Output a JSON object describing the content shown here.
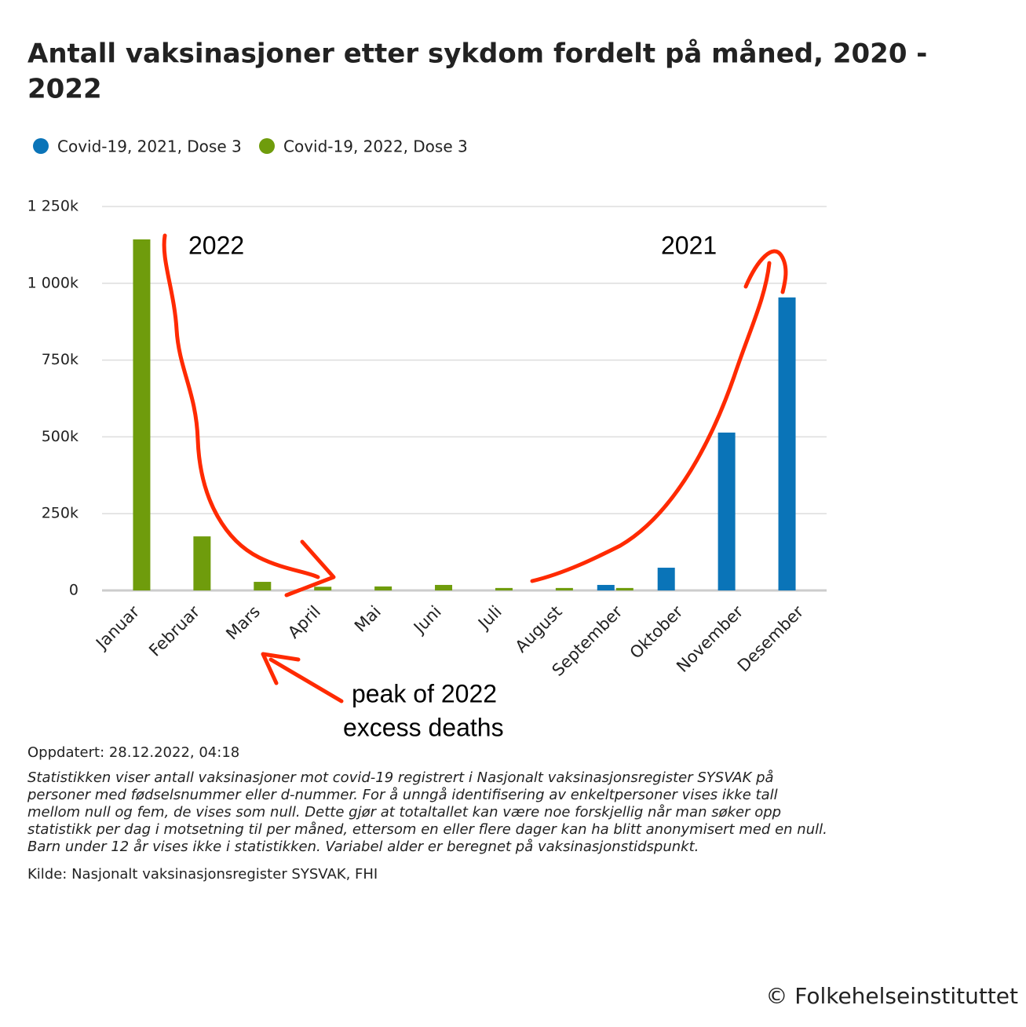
{
  "chart_data": {
    "type": "bar",
    "title": [
      "Antall vaksinasjoner etter sykdom fordelt på måned, 2020 -",
      "2022"
    ],
    "categories": [
      "Januar",
      "Februar",
      "Mars",
      "April",
      "Mai",
      "Juni",
      "Juli",
      "August",
      "September",
      "Oktober",
      "November",
      "Desember"
    ],
    "series": [
      {
        "name": "Covid-19, 2021, Dose 3",
        "color": "#0a74b8",
        "values": [
          null,
          null,
          null,
          null,
          null,
          null,
          null,
          null,
          18000,
          74000,
          514000,
          954000
        ]
      },
      {
        "name": "Covid-19, 2022, Dose 3",
        "color": "#6f9c0c",
        "values": [
          1143000,
          176000,
          28000,
          12000,
          13000,
          18000,
          8000,
          8000,
          8000,
          null,
          null,
          null
        ]
      }
    ],
    "ylim": [
      0,
      1250000
    ],
    "yticks": [
      0,
      {
        "value": 250000,
        "label": "250k"
      },
      {
        "value": 500000,
        "label": "500k"
      },
      {
        "value": 750000,
        "label": "750k"
      },
      {
        "value": 1000000,
        "label": "1 000k"
      },
      {
        "value": 1250000,
        "label": "1 250k"
      }
    ],
    "grid": true,
    "legend": "top",
    "annotations": {
      "year_2022": "2022",
      "year_2021": "2021",
      "peak": [
        "peak of 2022",
        "excess deaths"
      ]
    },
    "updated": "Oppdatert: 28.12.2022, 04:18",
    "note": [
      "Statistikken viser antall vaksinasjoner mot covid-19 registrert i Nasjonalt vaksinasjonsregister SYSVAK på",
      "personer med fødselsnummer eller d-nummer. For å unngå identifisering av enkeltpersoner vises ikke tall",
      "mellom null og fem, de vises som null. Dette gjør at totaltallet kan være noe forskjellig når man søker opp",
      "statistikk per dag i motsetning til per måned, ettersom en eller flere dager kan ha blitt anonymisert med en null.",
      "Barn under 12 år vises ikke i statistikken. Variabel alder er beregnet på vaksinasjonstidspunkt."
    ],
    "source": "Kilde: Nasjonalt vaksinasjonsregister SYSVAK, FHI",
    "copyright": "© Folkehelseinstituttet"
  }
}
